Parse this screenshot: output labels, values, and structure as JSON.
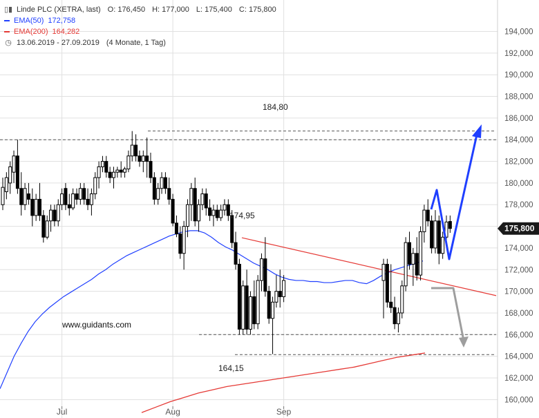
{
  "header": {
    "symbol": "Linde PLC (XETRA, last)",
    "ohlc": {
      "open": "O: 176,450",
      "high": "H: 177,000",
      "low": "L: 175,400",
      "close": "C: 175,800"
    },
    "ema50": {
      "label": "EMA(50)",
      "value": "172,758",
      "color": "#1f3fff"
    },
    "ema200": {
      "label": "EMA(200)",
      "value": "164,282",
      "color": "#e53935"
    },
    "range": "13.06.2019 - 27.09.2019",
    "range_note": "(4 Monate, 1 Tag)",
    "icons": [
      "candlestick-icon",
      "clock-icon"
    ]
  },
  "chart_data": {
    "type": "candlestick",
    "ylim": [
      159,
      195.5
    ],
    "yticks": [
      "194,000",
      "192,000",
      "190,000",
      "188,000",
      "186,000",
      "184,000",
      "182,000",
      "180,000",
      "178,000",
      "176,000",
      "174,000",
      "172,000",
      "170,000",
      "168,000",
      "166,000",
      "164,000",
      "162,000",
      "160,000"
    ],
    "ytick_values": [
      194,
      192,
      190,
      188,
      186,
      184,
      182,
      180,
      178,
      176,
      174,
      172,
      170,
      168,
      166,
      164,
      162,
      160
    ],
    "xticks": [
      {
        "label": "Jul",
        "index": 16
      },
      {
        "label": "Aug",
        "index": 46
      },
      {
        "label": "Sep",
        "index": 76
      }
    ],
    "n_slots": 121,
    "last_price": "175,800",
    "last_price_value": 175.8,
    "candles": [
      {
        "o": 178.0,
        "h": 180.5,
        "l": 177.5,
        "c": 179.6
      },
      {
        "o": 179.2,
        "h": 181.0,
        "l": 178.5,
        "c": 180.5
      },
      {
        "o": 180.0,
        "h": 182.0,
        "l": 179.0,
        "c": 181.5
      },
      {
        "o": 181.0,
        "h": 183.0,
        "l": 180.0,
        "c": 182.5
      },
      {
        "o": 182.5,
        "h": 184.0,
        "l": 179.0,
        "c": 179.5
      },
      {
        "o": 179.5,
        "h": 181.0,
        "l": 177.0,
        "c": 178.0
      },
      {
        "o": 178.0,
        "h": 180.0,
        "l": 177.5,
        "c": 179.5
      },
      {
        "o": 179.0,
        "h": 180.0,
        "l": 178.0,
        "c": 178.5
      },
      {
        "o": 178.5,
        "h": 179.5,
        "l": 176.0,
        "c": 177.0
      },
      {
        "o": 177.0,
        "h": 179.0,
        "l": 176.5,
        "c": 178.5
      },
      {
        "o": 178.5,
        "h": 180.0,
        "l": 176.5,
        "c": 177.0
      },
      {
        "o": 177.0,
        "h": 177.5,
        "l": 174.5,
        "c": 175.0
      },
      {
        "o": 175.0,
        "h": 177.0,
        "l": 174.8,
        "c": 176.5
      },
      {
        "o": 176.5,
        "h": 178.0,
        "l": 175.5,
        "c": 177.5
      },
      {
        "o": 177.5,
        "h": 178.0,
        "l": 176.0,
        "c": 176.5
      },
      {
        "o": 176.5,
        "h": 178.5,
        "l": 176.0,
        "c": 178.0
      },
      {
        "o": 178.0,
        "h": 179.5,
        "l": 177.5,
        "c": 179.0
      },
      {
        "o": 179.5,
        "h": 180.0,
        "l": 177.5,
        "c": 178.0
      },
      {
        "o": 178.0,
        "h": 179.0,
        "l": 177.0,
        "c": 177.7
      },
      {
        "o": 177.7,
        "h": 179.5,
        "l": 177.5,
        "c": 179.0
      },
      {
        "o": 179.0,
        "h": 179.5,
        "l": 178.0,
        "c": 178.5
      },
      {
        "o": 178.5,
        "h": 180.0,
        "l": 178.0,
        "c": 179.5
      },
      {
        "o": 179.5,
        "h": 180.0,
        "l": 178.0,
        "c": 178.5
      },
      {
        "o": 178.5,
        "h": 179.5,
        "l": 177.5,
        "c": 178.0
      },
      {
        "o": 178.0,
        "h": 179.5,
        "l": 177.0,
        "c": 179.0
      },
      {
        "o": 179.0,
        "h": 181.0,
        "l": 178.5,
        "c": 180.5
      },
      {
        "o": 180.5,
        "h": 182.0,
        "l": 179.5,
        "c": 181.5
      },
      {
        "o": 181.5,
        "h": 182.5,
        "l": 181.0,
        "c": 182.0
      },
      {
        "o": 182.0,
        "h": 182.5,
        "l": 180.5,
        "c": 181.0
      },
      {
        "o": 181.0,
        "h": 181.5,
        "l": 180.0,
        "c": 180.5
      },
      {
        "o": 180.5,
        "h": 181.5,
        "l": 179.5,
        "c": 181.0
      },
      {
        "o": 181.0,
        "h": 181.5,
        "l": 180.5,
        "c": 181.2
      },
      {
        "o": 181.2,
        "h": 182.0,
        "l": 180.5,
        "c": 181.0
      },
      {
        "o": 181.0,
        "h": 181.5,
        "l": 180.5,
        "c": 181.3
      },
      {
        "o": 181.3,
        "h": 183.0,
        "l": 181.0,
        "c": 182.5
      },
      {
        "o": 182.5,
        "h": 184.8,
        "l": 182.0,
        "c": 183.5
      },
      {
        "o": 183.5,
        "h": 184.5,
        "l": 182.0,
        "c": 182.5
      },
      {
        "o": 182.5,
        "h": 183.0,
        "l": 181.5,
        "c": 182.0
      },
      {
        "o": 182.0,
        "h": 183.0,
        "l": 181.0,
        "c": 182.5
      },
      {
        "o": 182.5,
        "h": 184.2,
        "l": 180.5,
        "c": 182.0
      },
      {
        "o": 182.0,
        "h": 182.8,
        "l": 180.0,
        "c": 180.5
      },
      {
        "o": 180.5,
        "h": 181.0,
        "l": 178.0,
        "c": 178.5
      },
      {
        "o": 178.5,
        "h": 180.0,
        "l": 178.0,
        "c": 179.5
      },
      {
        "o": 179.5,
        "h": 181.0,
        "l": 179.0,
        "c": 180.5
      },
      {
        "o": 180.5,
        "h": 181.0,
        "l": 179.0,
        "c": 179.5
      },
      {
        "o": 179.5,
        "h": 180.5,
        "l": 178.0,
        "c": 178.5
      },
      {
        "o": 178.5,
        "h": 179.0,
        "l": 176.0,
        "c": 176.3
      },
      {
        "o": 176.3,
        "h": 177.0,
        "l": 175.0,
        "c": 175.3
      },
      {
        "o": 175.3,
        "h": 176.0,
        "l": 173.0,
        "c": 173.5
      },
      {
        "o": 173.5,
        "h": 176.5,
        "l": 172.0,
        "c": 176.0
      },
      {
        "o": 176.0,
        "h": 178.5,
        "l": 175.0,
        "c": 178.0
      },
      {
        "o": 178.0,
        "h": 180.0,
        "l": 176.5,
        "c": 179.5
      },
      {
        "o": 179.5,
        "h": 180.5,
        "l": 176.0,
        "c": 176.5
      },
      {
        "o": 176.5,
        "h": 178.5,
        "l": 175.5,
        "c": 178.0
      },
      {
        "o": 178.0,
        "h": 179.5,
        "l": 177.5,
        "c": 179.0
      },
      {
        "o": 179.0,
        "h": 179.5,
        "l": 177.0,
        "c": 177.7
      },
      {
        "o": 177.7,
        "h": 178.5,
        "l": 176.5,
        "c": 177.0
      },
      {
        "o": 177.0,
        "h": 178.0,
        "l": 176.0,
        "c": 177.5
      },
      {
        "o": 177.5,
        "h": 178.0,
        "l": 176.5,
        "c": 176.8
      },
      {
        "o": 176.8,
        "h": 178.0,
        "l": 176.5,
        "c": 177.5
      },
      {
        "o": 177.5,
        "h": 178.5,
        "l": 177.0,
        "c": 178.0
      },
      {
        "o": 178.0,
        "h": 178.5,
        "l": 176.5,
        "c": 177.0
      },
      {
        "o": 177.0,
        "h": 177.5,
        "l": 174.0,
        "c": 174.5
      },
      {
        "o": 174.5,
        "h": 175.5,
        "l": 172.0,
        "c": 172.5
      },
      {
        "o": 172.5,
        "h": 173.0,
        "l": 166.0,
        "c": 166.5
      },
      {
        "o": 166.5,
        "h": 171.0,
        "l": 166.0,
        "c": 170.5
      },
      {
        "o": 170.5,
        "h": 172.0,
        "l": 166.0,
        "c": 166.5
      },
      {
        "o": 166.5,
        "h": 170.0,
        "l": 166.0,
        "c": 169.5
      },
      {
        "o": 169.5,
        "h": 171.0,
        "l": 166.5,
        "c": 167.0
      },
      {
        "o": 167.0,
        "h": 171.5,
        "l": 166.5,
        "c": 171.0
      },
      {
        "o": 171.0,
        "h": 173.5,
        "l": 170.0,
        "c": 173.0
      },
      {
        "o": 173.0,
        "h": 175.0,
        "l": 169.5,
        "c": 170.0
      },
      {
        "o": 170.0,
        "h": 170.5,
        "l": 167.0,
        "c": 167.5
      },
      {
        "o": 167.5,
        "h": 169.5,
        "l": 164.2,
        "c": 169.0
      },
      {
        "o": 169.0,
        "h": 171.5,
        "l": 168.5,
        "c": 170.0
      },
      {
        "o": 170.0,
        "h": 172.0,
        "l": 168.5,
        "c": 169.5
      },
      {
        "o": 169.5,
        "h": 171.5,
        "l": 169.0,
        "c": 171.0
      }
    ],
    "candles_tail_note": "second group continues on pixel grid",
    "ema50": [
      161.0,
      162.5,
      164.0,
      165.2,
      166.3,
      167.2,
      167.9,
      168.5,
      169.0,
      169.5,
      169.9,
      170.3,
      170.7,
      171.1,
      171.6,
      172.0,
      172.5,
      172.9,
      173.3,
      173.6,
      173.9,
      174.2,
      174.5,
      174.8,
      175.1,
      175.3,
      175.5,
      175.6,
      175.6,
      175.4,
      175.0,
      174.5,
      174.1,
      173.8,
      173.4,
      173.0,
      172.6,
      172.3,
      172.0,
      171.6,
      171.3,
      171.1,
      171.0,
      171.0,
      170.9,
      170.9,
      170.8,
      170.8,
      170.9,
      171.0,
      171.0,
      170.8,
      170.7,
      171.0,
      171.4,
      171.7,
      172.0,
      172.2,
      172.4,
      172.6,
      172.8
    ],
    "ema200": [
      158.8,
      159.3,
      159.8,
      160.2,
      160.6,
      160.9,
      161.2,
      161.4,
      161.6,
      161.8,
      162.0,
      162.2,
      162.4,
      162.6,
      162.8,
      163.0,
      163.3,
      163.6,
      163.9,
      164.1,
      164.3
    ],
    "annotations": [
      {
        "label": "184,80",
        "value": 184.8
      },
      {
        "label": "174,95",
        "value": 174.95
      },
      {
        "label": "164,15",
        "value": 164.15
      },
      {
        "label": "www.guidants.com"
      }
    ],
    "levels": [
      184.8,
      184.0,
      166.0,
      164.15
    ],
    "colors": {
      "candle": "#000000",
      "ema50": "#1f3fff",
      "ema200": "#e53935",
      "trend": "#e53935",
      "up_arrow": "#1f3fff",
      "down_arrow": "#9e9e9e",
      "grid": "#e0e0e0",
      "axis_text": "#555555"
    }
  }
}
